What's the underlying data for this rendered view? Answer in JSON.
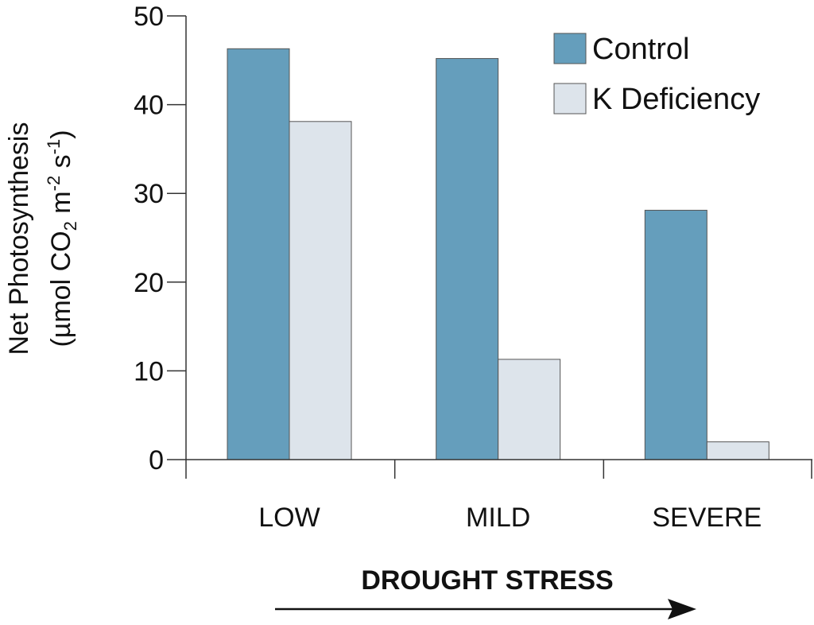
{
  "chart_data": {
    "type": "bar",
    "categories": [
      "LOW",
      "MILD",
      "SEVERE"
    ],
    "series": [
      {
        "name": "Control",
        "values": [
          46.3,
          45.2,
          28.1
        ],
        "color": "#659ebc"
      },
      {
        "name": "K Deficiency",
        "values": [
          38.1,
          11.3,
          2.0
        ],
        "color": "#dde4eb"
      }
    ],
    "ylim": [
      0,
      50
    ],
    "yticks": [
      0,
      10,
      20,
      30,
      40,
      50
    ],
    "ylabel_line1": "Net Photosynthesis",
    "ylabel_line2_parts": {
      "open": "(µmol CO",
      "sub": "2",
      "mid": " m",
      "sup1": "-2",
      "mid2": " s",
      "sup2": "-1",
      "close": ")"
    },
    "xlabel": "DROUGHT STRESS",
    "legend_position": "top-right",
    "grid": false
  }
}
